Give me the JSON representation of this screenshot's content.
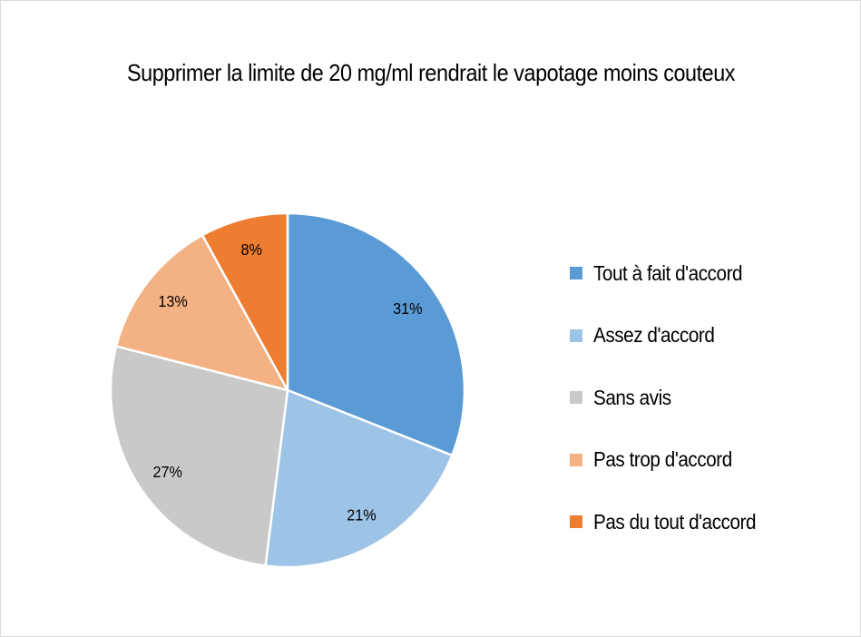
{
  "chart_data": {
    "type": "pie",
    "title": "Supprimer la limite de 20 mg/ml rendrait le vapotage moins couteux",
    "categories": [
      "Tout à fait d'accord",
      "Assez d'accord",
      "Sans avis",
      "Pas trop d'accord",
      "Pas du tout d'accord"
    ],
    "values": [
      31,
      21,
      27,
      13,
      8
    ],
    "data_labels": [
      "31%",
      "21%",
      "27%",
      "13%",
      "8%"
    ],
    "colors": [
      "#5B9BD5",
      "#9DC3E6",
      "#C9C9C9",
      "#F4B183",
      "#ED7D31"
    ],
    "legend_position": "right"
  }
}
